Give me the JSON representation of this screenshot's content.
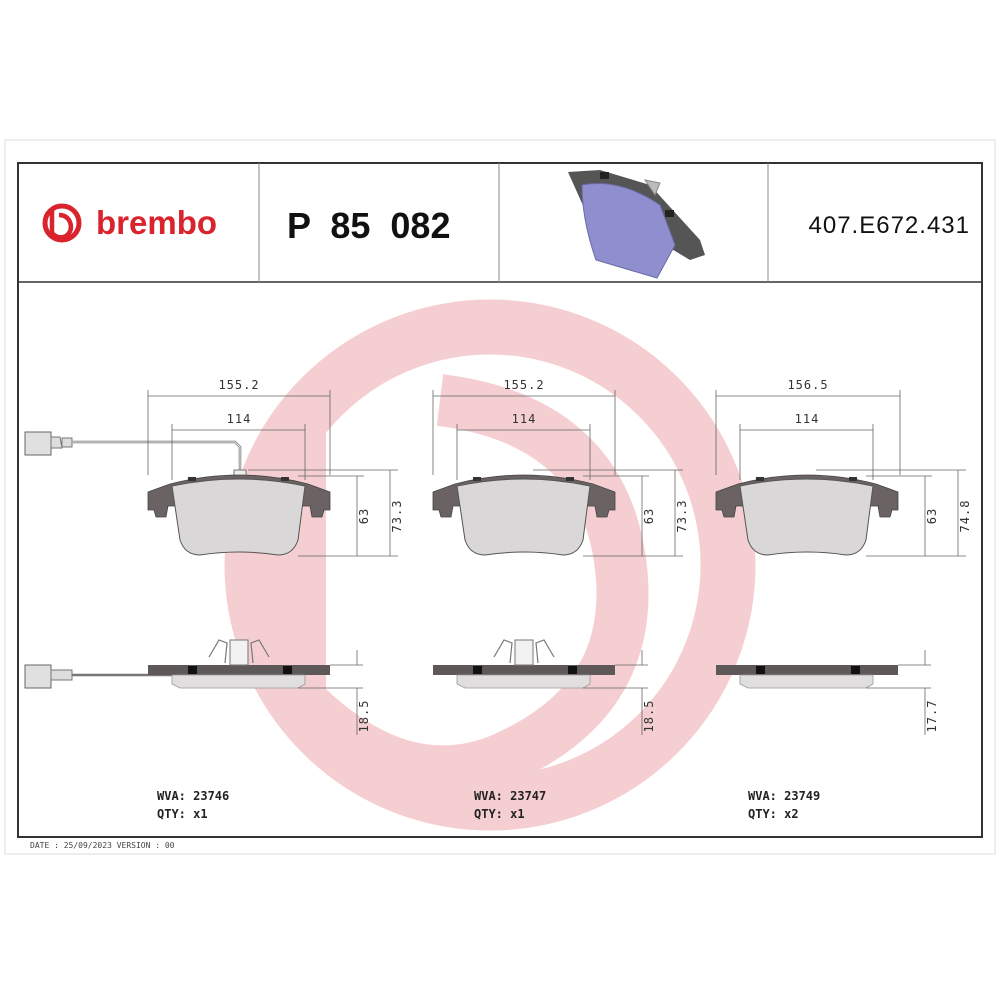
{
  "header": {
    "brand": "brembo",
    "part_number": "P  85  082",
    "reference_code": "407.E672.431"
  },
  "colors": {
    "brand_red": "#d9232d",
    "watermark": "#f5c9cd",
    "backing_plate": "#6b6363",
    "friction_material": "#d9d7d7",
    "product_image": "#8f8fd0"
  },
  "pads": [
    {
      "width_total": "155.2",
      "width_inner": "114",
      "height_inner": "63",
      "height_total": "73.3",
      "thickness": "18.5",
      "wva_label": "WVA: 23746",
      "qty_label": "QTY: x1",
      "has_wear_sensor": true
    },
    {
      "width_total": "155.2",
      "width_inner": "114",
      "height_inner": "63",
      "height_total": "73.3",
      "thickness": "18.5",
      "wva_label": "WVA: 23747",
      "qty_label": "QTY: x1",
      "has_wear_sensor": false
    },
    {
      "width_total": "156.5",
      "width_inner": "114",
      "height_inner": "63",
      "height_total": "74.8",
      "thickness": "17.7",
      "wva_label": "WVA: 23749",
      "qty_label": "QTY: x2",
      "has_wear_sensor": false
    }
  ],
  "footer": {
    "text": "DATE : 25/09/2023 VERSION : 00"
  }
}
